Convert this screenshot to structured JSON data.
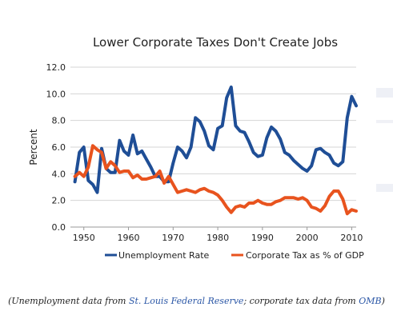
{
  "chart_data": {
    "type": "line",
    "title": "Lower Corporate Taxes Don't Create Jobs",
    "ylabel": "Percent",
    "xlabel": "",
    "xlim": [
      1947,
      2011
    ],
    "ylim": [
      0,
      12
    ],
    "yticks": [
      "0.0",
      "2.0",
      "4.0",
      "6.0",
      "8.0",
      "10.0",
      "12.0"
    ],
    "xticks": [
      "1950",
      "1960",
      "1970",
      "1980",
      "1990",
      "2000",
      "2010"
    ],
    "grid": "horizontal",
    "legend_position": "bottom",
    "series": [
      {
        "name": "Unemployment Rate",
        "color": "#1f4e96",
        "x": [
          1948,
          1949,
          1950,
          1951,
          1952,
          1953,
          1954,
          1955,
          1956,
          1957,
          1958,
          1959,
          1960,
          1961,
          1962,
          1963,
          1964,
          1965,
          1966,
          1967,
          1968,
          1969,
          1970,
          1971,
          1972,
          1973,
          1974,
          1975,
          1976,
          1977,
          1978,
          1979,
          1980,
          1981,
          1982,
          1983,
          1984,
          1985,
          1986,
          1987,
          1988,
          1989,
          1990,
          1991,
          1992,
          1993,
          1994,
          1995,
          1996,
          1997,
          1998,
          1999,
          2000,
          2001,
          2002,
          2003,
          2004,
          2005,
          2006,
          2007,
          2008,
          2009,
          2010,
          2011
        ],
        "values": [
          3.4,
          5.6,
          6.0,
          3.5,
          3.2,
          2.6,
          5.9,
          4.4,
          4.1,
          4.1,
          6.5,
          5.7,
          5.4,
          6.9,
          5.5,
          5.7,
          5.1,
          4.5,
          3.8,
          3.8,
          3.4,
          3.4,
          4.8,
          6.0,
          5.7,
          5.2,
          6.0,
          8.2,
          7.9,
          7.2,
          6.1,
          5.8,
          7.4,
          7.6,
          9.7,
          10.5,
          7.6,
          7.2,
          7.1,
          6.4,
          5.6,
          5.3,
          5.4,
          6.7,
          7.5,
          7.2,
          6.6,
          5.6,
          5.4,
          5.0,
          4.7,
          4.4,
          4.2,
          4.6,
          5.8,
          5.9,
          5.6,
          5.4,
          4.8,
          4.6,
          4.9,
          8.2,
          9.8,
          9.1
        ]
      },
      {
        "name": "Corporate Tax as % of GDP",
        "color": "#e8531e",
        "x": [
          1948,
          1949,
          1950,
          1951,
          1952,
          1953,
          1954,
          1955,
          1956,
          1957,
          1958,
          1959,
          1960,
          1961,
          1962,
          1963,
          1964,
          1965,
          1966,
          1967,
          1968,
          1969,
          1970,
          1971,
          1972,
          1973,
          1974,
          1975,
          1976,
          1977,
          1978,
          1979,
          1980,
          1981,
          1982,
          1983,
          1984,
          1985,
          1986,
          1987,
          1988,
          1989,
          1990,
          1991,
          1992,
          1993,
          1994,
          1995,
          1996,
          1997,
          1998,
          1999,
          2000,
          2001,
          2002,
          2003,
          2004,
          2005,
          2006,
          2007,
          2008,
          2009,
          2010,
          2011
        ],
        "values": [
          3.8,
          4.1,
          3.8,
          4.5,
          6.1,
          5.8,
          5.6,
          4.4,
          4.9,
          4.6,
          4.1,
          4.2,
          4.2,
          3.7,
          3.9,
          3.6,
          3.6,
          3.7,
          3.8,
          4.2,
          3.3,
          3.8,
          3.2,
          2.6,
          2.7,
          2.8,
          2.7,
          2.6,
          2.8,
          2.9,
          2.7,
          2.6,
          2.4,
          2.0,
          1.5,
          1.1,
          1.5,
          1.6,
          1.5,
          1.8,
          1.8,
          2.0,
          1.8,
          1.7,
          1.7,
          1.9,
          2.0,
          2.2,
          2.2,
          2.2,
          2.1,
          2.2,
          2.0,
          1.5,
          1.4,
          1.2,
          1.6,
          2.3,
          2.7,
          2.7,
          2.1,
          1.0,
          1.3,
          1.2
        ]
      }
    ]
  },
  "caption": {
    "prefix": "(Unemployment data from ",
    "link1": "St. Louis Federal Reserve",
    "middle": "; corporate tax data from ",
    "link2": "OMB",
    "suffix": ")"
  },
  "colors": {
    "unemployment": "#1f4e96",
    "corporate_tax": "#e8531e",
    "grid": "#d4d4d4",
    "axis_text": "#222222"
  }
}
